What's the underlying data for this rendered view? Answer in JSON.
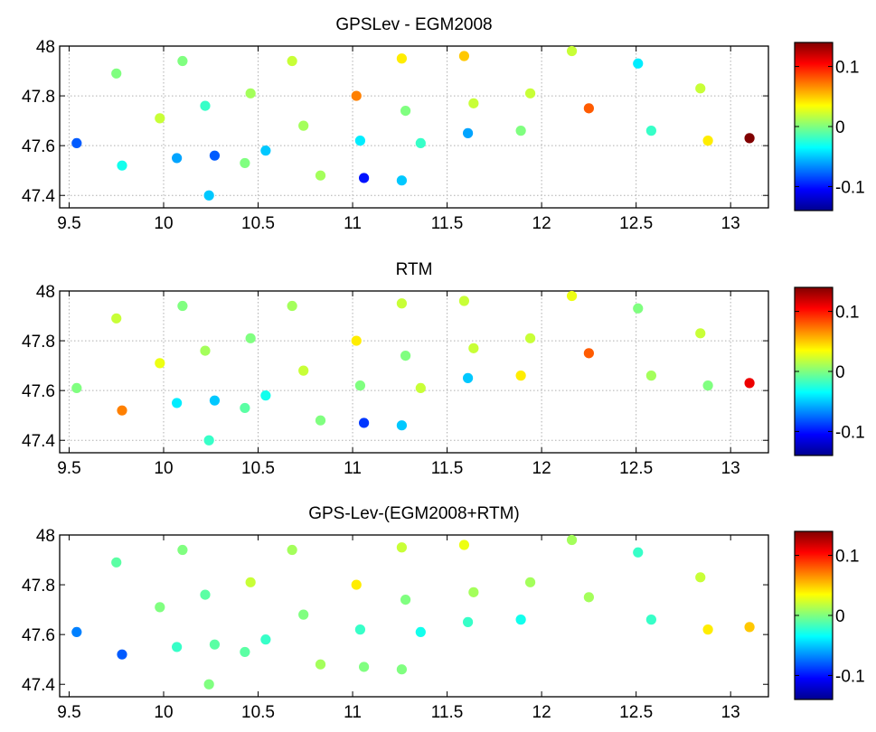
{
  "colors": {
    "colormap": "jet",
    "background": "#ffffff",
    "grid": "#b0b0b0",
    "axis": "#000000"
  },
  "chart_data": [
    {
      "type": "scatter",
      "title": "GPSLev - EGM2008",
      "xlim": [
        9.45,
        13.2
      ],
      "ylim": [
        47.35,
        48
      ],
      "xticks": [
        "9.5",
        "10",
        "10.5",
        "11",
        "11.5",
        "12",
        "12.5",
        "13"
      ],
      "yticks": [
        "47.4",
        "47.6",
        "47.8",
        "48"
      ],
      "grid": true,
      "colorbar": {
        "clim": [
          -0.14,
          0.14
        ],
        "ticks": [
          "0.1",
          "0",
          "-0.1"
        ],
        "placement": "right"
      },
      "points": [
        {
          "x": 9.75,
          "y": 47.89,
          "v": 0.0
        },
        {
          "x": 10.1,
          "y": 47.94,
          "v": 0.0
        },
        {
          "x": 10.68,
          "y": 47.94,
          "v": 0.02
        },
        {
          "x": 11.26,
          "y": 47.95,
          "v": 0.04
        },
        {
          "x": 11.59,
          "y": 47.96,
          "v": 0.05
        },
        {
          "x": 12.16,
          "y": 47.98,
          "v": 0.02
        },
        {
          "x": 12.51,
          "y": 47.93,
          "v": -0.04
        },
        {
          "x": 12.84,
          "y": 47.83,
          "v": 0.02
        },
        {
          "x": 9.98,
          "y": 47.71,
          "v": 0.02
        },
        {
          "x": 10.22,
          "y": 47.76,
          "v": -0.02
        },
        {
          "x": 10.46,
          "y": 47.81,
          "v": 0.01
        },
        {
          "x": 11.02,
          "y": 47.8,
          "v": 0.07
        },
        {
          "x": 11.28,
          "y": 47.74,
          "v": 0.0
        },
        {
          "x": 11.64,
          "y": 47.77,
          "v": 0.02
        },
        {
          "x": 11.94,
          "y": 47.81,
          "v": 0.02
        },
        {
          "x": 12.25,
          "y": 47.75,
          "v": 0.08
        },
        {
          "x": 10.74,
          "y": 47.68,
          "v": 0.01
        },
        {
          "x": 11.89,
          "y": 47.66,
          "v": 0.0
        },
        {
          "x": 12.58,
          "y": 47.66,
          "v": -0.02
        },
        {
          "x": 12.88,
          "y": 47.62,
          "v": 0.04
        },
        {
          "x": 13.1,
          "y": 47.63,
          "v": 0.14
        },
        {
          "x": 9.54,
          "y": 47.61,
          "v": -0.08
        },
        {
          "x": 10.07,
          "y": 47.55,
          "v": -0.06
        },
        {
          "x": 10.27,
          "y": 47.56,
          "v": -0.08
        },
        {
          "x": 10.54,
          "y": 47.58,
          "v": -0.05
        },
        {
          "x": 11.04,
          "y": 47.62,
          "v": -0.04
        },
        {
          "x": 11.36,
          "y": 47.61,
          "v": -0.02
        },
        {
          "x": 11.61,
          "y": 47.65,
          "v": -0.06
        },
        {
          "x": 9.78,
          "y": 47.52,
          "v": -0.03
        },
        {
          "x": 10.43,
          "y": 47.53,
          "v": 0.0
        },
        {
          "x": 10.83,
          "y": 47.48,
          "v": 0.01
        },
        {
          "x": 11.06,
          "y": 47.47,
          "v": -0.1
        },
        {
          "x": 11.26,
          "y": 47.46,
          "v": -0.05
        },
        {
          "x": 10.24,
          "y": 47.4,
          "v": -0.05
        }
      ]
    },
    {
      "type": "scatter",
      "title": "RTM",
      "xlim": [
        9.45,
        13.2
      ],
      "ylim": [
        47.35,
        48
      ],
      "xticks": [
        "9.5",
        "10",
        "10.5",
        "11",
        "11.5",
        "12",
        "12.5",
        "13"
      ],
      "yticks": [
        "47.4",
        "47.6",
        "47.8",
        "48"
      ],
      "grid": true,
      "colorbar": {
        "clim": [
          -0.14,
          0.14
        ],
        "ticks": [
          "0.1",
          "0",
          "-0.1"
        ],
        "placement": "right"
      },
      "points": [
        {
          "x": 9.75,
          "y": 47.89,
          "v": 0.02
        },
        {
          "x": 10.1,
          "y": 47.94,
          "v": 0.0
        },
        {
          "x": 10.68,
          "y": 47.94,
          "v": 0.01
        },
        {
          "x": 11.26,
          "y": 47.95,
          "v": 0.02
        },
        {
          "x": 11.59,
          "y": 47.96,
          "v": 0.02
        },
        {
          "x": 12.16,
          "y": 47.98,
          "v": 0.03
        },
        {
          "x": 12.51,
          "y": 47.93,
          "v": 0.0
        },
        {
          "x": 12.84,
          "y": 47.83,
          "v": 0.02
        },
        {
          "x": 9.98,
          "y": 47.71,
          "v": 0.03
        },
        {
          "x": 10.22,
          "y": 47.76,
          "v": 0.01
        },
        {
          "x": 10.46,
          "y": 47.81,
          "v": 0.0
        },
        {
          "x": 11.02,
          "y": 47.8,
          "v": 0.04
        },
        {
          "x": 11.28,
          "y": 47.74,
          "v": 0.0
        },
        {
          "x": 11.64,
          "y": 47.77,
          "v": 0.02
        },
        {
          "x": 11.94,
          "y": 47.81,
          "v": 0.02
        },
        {
          "x": 12.25,
          "y": 47.75,
          "v": 0.08
        },
        {
          "x": 10.74,
          "y": 47.68,
          "v": 0.02
        },
        {
          "x": 11.89,
          "y": 47.66,
          "v": 0.04
        },
        {
          "x": 12.58,
          "y": 47.66,
          "v": 0.01
        },
        {
          "x": 12.88,
          "y": 47.62,
          "v": 0.0
        },
        {
          "x": 13.1,
          "y": 47.63,
          "v": 0.11
        },
        {
          "x": 9.54,
          "y": 47.61,
          "v": 0.0
        },
        {
          "x": 10.07,
          "y": 47.55,
          "v": -0.04
        },
        {
          "x": 10.27,
          "y": 47.56,
          "v": -0.05
        },
        {
          "x": 10.54,
          "y": 47.58,
          "v": -0.03
        },
        {
          "x": 11.04,
          "y": 47.62,
          "v": 0.0
        },
        {
          "x": 11.36,
          "y": 47.61,
          "v": 0.02
        },
        {
          "x": 11.61,
          "y": 47.65,
          "v": -0.05
        },
        {
          "x": 9.78,
          "y": 47.52,
          "v": 0.07
        },
        {
          "x": 10.43,
          "y": 47.53,
          "v": -0.01
        },
        {
          "x": 10.83,
          "y": 47.48,
          "v": 0.0
        },
        {
          "x": 11.06,
          "y": 47.47,
          "v": -0.09
        },
        {
          "x": 11.26,
          "y": 47.46,
          "v": -0.05
        },
        {
          "x": 10.24,
          "y": 47.4,
          "v": -0.02
        }
      ]
    },
    {
      "type": "scatter",
      "title": "GPS-Lev-(EGM2008+RTM)",
      "xlim": [
        9.45,
        13.2
      ],
      "ylim": [
        47.35,
        48
      ],
      "xticks": [
        "9.5",
        "10",
        "10.5",
        "11",
        "11.5",
        "12",
        "12.5",
        "13"
      ],
      "yticks": [
        "47.4",
        "47.6",
        "47.8",
        "48"
      ],
      "grid": false,
      "colorbar": {
        "clim": [
          -0.14,
          0.14
        ],
        "ticks": [
          "0.1",
          "0",
          "-0.1"
        ],
        "placement": "right"
      },
      "points": [
        {
          "x": 9.75,
          "y": 47.89,
          "v": -0.01
        },
        {
          "x": 10.1,
          "y": 47.94,
          "v": 0.0
        },
        {
          "x": 10.68,
          "y": 47.94,
          "v": 0.01
        },
        {
          "x": 11.26,
          "y": 47.95,
          "v": 0.02
        },
        {
          "x": 11.59,
          "y": 47.96,
          "v": 0.03
        },
        {
          "x": 12.16,
          "y": 47.98,
          "v": 0.01
        },
        {
          "x": 12.51,
          "y": 47.93,
          "v": -0.02
        },
        {
          "x": 12.84,
          "y": 47.83,
          "v": 0.02
        },
        {
          "x": 9.98,
          "y": 47.71,
          "v": 0.0
        },
        {
          "x": 10.22,
          "y": 47.76,
          "v": -0.01
        },
        {
          "x": 10.46,
          "y": 47.81,
          "v": 0.02
        },
        {
          "x": 11.02,
          "y": 47.8,
          "v": 0.04
        },
        {
          "x": 11.28,
          "y": 47.74,
          "v": 0.0
        },
        {
          "x": 11.64,
          "y": 47.77,
          "v": 0.01
        },
        {
          "x": 11.94,
          "y": 47.81,
          "v": 0.01
        },
        {
          "x": 12.25,
          "y": 47.75,
          "v": 0.01
        },
        {
          "x": 10.74,
          "y": 47.68,
          "v": 0.0
        },
        {
          "x": 11.89,
          "y": 47.66,
          "v": -0.03
        },
        {
          "x": 12.58,
          "y": 47.66,
          "v": -0.02
        },
        {
          "x": 12.88,
          "y": 47.62,
          "v": 0.04
        },
        {
          "x": 13.1,
          "y": 47.63,
          "v": 0.05
        },
        {
          "x": 9.54,
          "y": 47.61,
          "v": -0.07
        },
        {
          "x": 10.07,
          "y": 47.55,
          "v": -0.02
        },
        {
          "x": 10.27,
          "y": 47.56,
          "v": -0.01
        },
        {
          "x": 10.54,
          "y": 47.58,
          "v": -0.02
        },
        {
          "x": 11.04,
          "y": 47.62,
          "v": -0.02
        },
        {
          "x": 11.36,
          "y": 47.61,
          "v": -0.03
        },
        {
          "x": 11.61,
          "y": 47.65,
          "v": -0.02
        },
        {
          "x": 9.78,
          "y": 47.52,
          "v": -0.08
        },
        {
          "x": 10.43,
          "y": 47.53,
          "v": -0.01
        },
        {
          "x": 10.83,
          "y": 47.48,
          "v": 0.01
        },
        {
          "x": 11.06,
          "y": 47.47,
          "v": 0.0
        },
        {
          "x": 11.26,
          "y": 47.46,
          "v": 0.0
        },
        {
          "x": 10.24,
          "y": 47.4,
          "v": 0.0
        }
      ]
    }
  ]
}
